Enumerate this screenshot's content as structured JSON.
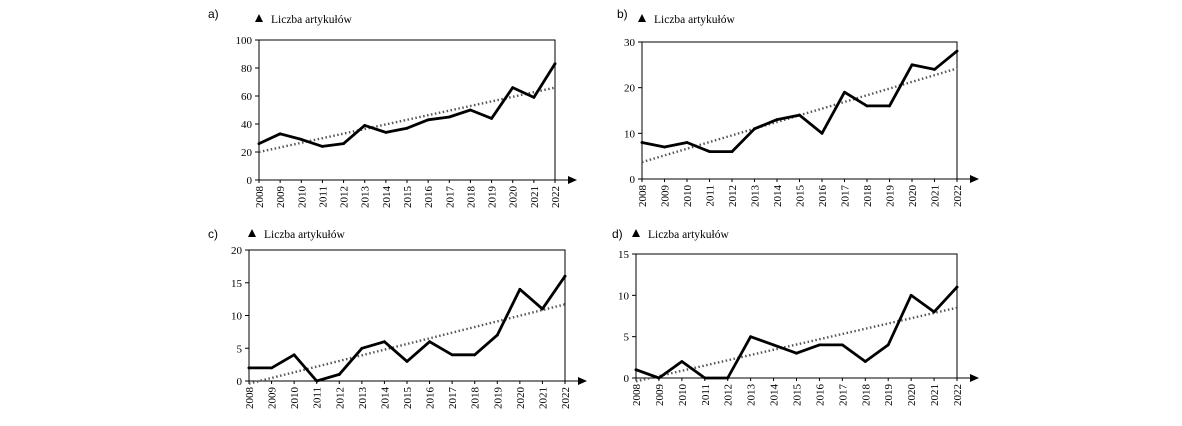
{
  "chart_data": [
    {
      "panel_label": "a)",
      "type": "line",
      "ylabel": "Liczba artykułów",
      "xlabel": "",
      "x": [
        "2008",
        "2009",
        "2010",
        "2011",
        "2012",
        "2013",
        "2014",
        "2015",
        "2016",
        "2017",
        "2018",
        "2019",
        "2020",
        "2021",
        "2022"
      ],
      "series": [
        {
          "values": [
            26,
            33,
            29,
            24,
            26,
            39,
            34,
            37,
            43,
            45,
            50,
            44,
            66,
            59,
            83
          ]
        }
      ],
      "trendline": {
        "style": "dotted",
        "start": 20,
        "end": 66
      },
      "ylim": [
        0,
        100
      ],
      "yticks": [
        0,
        20,
        40,
        60,
        80,
        100
      ]
    },
    {
      "panel_label": "b)",
      "type": "line",
      "ylabel": "Liczba artykułów",
      "xlabel": "",
      "x": [
        "2008",
        "2009",
        "2010",
        "2011",
        "2012",
        "2013",
        "2014",
        "2015",
        "2016",
        "2017",
        "2018",
        "2019",
        "2020",
        "2021",
        "2022"
      ],
      "series": [
        {
          "values": [
            8,
            7,
            8,
            6,
            6,
            11,
            13,
            14,
            10,
            19,
            16,
            16,
            25,
            24,
            28
          ]
        }
      ],
      "trendline": {
        "style": "dotted",
        "start": 3.7,
        "end": 24.2
      },
      "ylim": [
        0,
        30
      ],
      "yticks": [
        0,
        10,
        20,
        30
      ]
    },
    {
      "panel_label": "c)",
      "type": "line",
      "ylabel": "Liczba artykułów",
      "xlabel": "",
      "x": [
        "2008",
        "2009",
        "2010",
        "2011",
        "2012",
        "2013",
        "2014",
        "2015",
        "2016",
        "2017",
        "2018",
        "2019",
        "2020",
        "2021",
        "2022"
      ],
      "series": [
        {
          "values": [
            2,
            2,
            4,
            0,
            1,
            5,
            6,
            3,
            6,
            4,
            4,
            7,
            14,
            11,
            16
          ]
        }
      ],
      "trendline": {
        "style": "dotted",
        "start": -0.4,
        "end": 11.7
      },
      "ylim": [
        0,
        20
      ],
      "yticks": [
        0,
        5,
        10,
        15,
        20
      ]
    },
    {
      "panel_label": "d)",
      "type": "line",
      "ylabel": "Liczba artykułów",
      "xlabel": "",
      "x": [
        "2008",
        "2009",
        "2010",
        "2011",
        "2012",
        "2013",
        "2014",
        "2015",
        "2016",
        "2017",
        "2018",
        "2019",
        "2020",
        "2021",
        "2022"
      ],
      "series": [
        {
          "values": [
            1,
            0,
            2,
            0,
            0,
            5,
            4,
            3,
            4,
            4,
            2,
            4,
            10,
            8,
            11
          ]
        }
      ],
      "trendline": {
        "style": "dotted",
        "start": -0.4,
        "end": 8.5
      },
      "ylim": [
        0,
        15
      ],
      "yticks": [
        0,
        5,
        10,
        15
      ]
    }
  ]
}
